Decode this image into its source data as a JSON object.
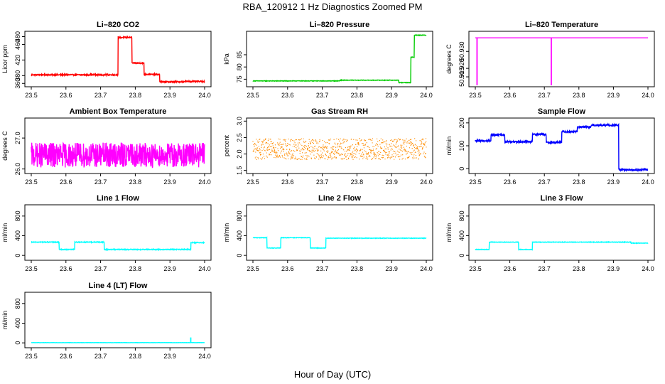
{
  "figure": {
    "title": "RBA_120912  1 Hz Diagnostics Zoomed PM",
    "xlabel": "Hour of Day (UTC)"
  },
  "chart_data": [
    {
      "id": "co2",
      "type": "line",
      "title": "Li–820 CO2",
      "ylabel": "Licor ppm",
      "color": "#ff0000",
      "xlim": [
        23.5,
        24.0
      ],
      "ylim": [
        355,
        490
      ],
      "xticks": [
        "23.5",
        "23.6",
        "23.7",
        "23.8",
        "23.9",
        "24.0"
      ],
      "xtick_values": [
        23.5,
        23.6,
        23.7,
        23.8,
        23.9,
        24.0
      ],
      "yticks": [
        "360",
        "380",
        "420",
        "460",
        "480"
      ],
      "ytick_values": [
        360,
        380,
        420,
        460,
        480
      ],
      "noise": 1.5,
      "segments": [
        [
          23.5,
          23.75,
          382
        ],
        [
          23.75,
          23.79,
          478
        ],
        [
          23.79,
          23.825,
          412
        ],
        [
          23.825,
          23.87,
          383
        ],
        [
          23.87,
          23.94,
          364
        ],
        [
          23.94,
          24.0,
          365
        ]
      ]
    },
    {
      "id": "pressure",
      "type": "line",
      "title": "Li–820 Pressure",
      "ylabel": "kPa",
      "color": "#00cc00",
      "xlim": [
        23.5,
        24.0
      ],
      "ylim": [
        72.5,
        94
      ],
      "xticks": [
        "23.5",
        "23.6",
        "23.7",
        "23.8",
        "23.9",
        "24.0"
      ],
      "xtick_values": [
        23.5,
        23.6,
        23.7,
        23.8,
        23.9,
        24.0
      ],
      "yticks": [
        "75",
        "80",
        "85"
      ],
      "ytick_values": [
        75,
        80,
        85
      ],
      "noise": 0.1,
      "segments": [
        [
          23.5,
          23.75,
          74.3
        ],
        [
          23.75,
          23.92,
          74.6
        ],
        [
          23.92,
          23.955,
          73.6
        ],
        [
          23.955,
          23.965,
          84.0
        ],
        [
          23.965,
          24.0,
          93.0
        ]
      ]
    },
    {
      "id": "licor_temp",
      "type": "line",
      "title": "Li–820 Temperature",
      "ylabel": "degrees C",
      "color": "#ff00ff",
      "xlim": [
        23.5,
        24.0
      ],
      "ylim": [
        50.91,
        50.941
      ],
      "xticks": [
        "23.5",
        "23.6",
        "23.7",
        "23.8",
        "23.9",
        "24.0"
      ],
      "xtick_values": [
        23.5,
        23.6,
        23.7,
        23.8,
        23.9,
        24.0
      ],
      "yticks": [
        "50.915",
        "50.920",
        "50.930"
      ],
      "ytick_values": [
        50.915,
        50.92,
        50.93
      ],
      "noise": 0,
      "segments": [
        [
          23.5,
          24.0,
          50.938
        ]
      ],
      "spikes": [
        [
          23.505,
          50.91
        ],
        [
          23.72,
          50.91
        ]
      ]
    },
    {
      "id": "box_temp",
      "type": "line",
      "title": "Ambient Box Temperature",
      "ylabel": "degrees C",
      "color": "#ff00ff",
      "xlim": [
        23.5,
        24.0
      ],
      "ylim": [
        25.9,
        27.6
      ],
      "xticks": [
        "23.5",
        "23.6",
        "23.7",
        "23.8",
        "23.9",
        "24.0"
      ],
      "xtick_values": [
        23.5,
        23.6,
        23.7,
        23.8,
        23.9,
        24.0
      ],
      "yticks": [
        "26.0",
        "27.0"
      ],
      "ytick_values": [
        26.0,
        27.0
      ],
      "noise": 0.4,
      "segments": [
        [
          23.5,
          24.0,
          26.45
        ]
      ]
    },
    {
      "id": "rh",
      "type": "scatter",
      "title": "Gas Stream RH",
      "ylabel": "percent",
      "color": "#ff8c00",
      "xlim": [
        23.5,
        24.0
      ],
      "ylim": [
        1.45,
        3.05
      ],
      "xticks": [
        "23.5",
        "23.6",
        "23.7",
        "23.8",
        "23.9",
        "24.0"
      ],
      "xtick_values": [
        23.5,
        23.6,
        23.7,
        23.8,
        23.9,
        24.0
      ],
      "yticks": [
        "1.5",
        "2.0",
        "2.5",
        "3.0"
      ],
      "ytick_values": [
        1.5,
        2.0,
        2.5,
        3.0
      ],
      "noise": 0.32,
      "segments": [
        [
          23.5,
          24.0,
          2.15
        ]
      ]
    },
    {
      "id": "sample_flow",
      "type": "line",
      "title": "Sample Flow",
      "ylabel": "ml/min",
      "color": "#0000ff",
      "xlim": [
        23.5,
        24.0
      ],
      "ylim": [
        -15,
        215
      ],
      "xticks": [
        "23.5",
        "23.6",
        "23.7",
        "23.8",
        "23.9",
        "24.0"
      ],
      "xtick_values": [
        23.5,
        23.6,
        23.7,
        23.8,
        23.9,
        24.0
      ],
      "yticks": [
        "0",
        "100",
        "200"
      ],
      "ytick_values": [
        0,
        100,
        200
      ],
      "noise": 4,
      "segments": [
        [
          23.5,
          23.545,
          122
        ],
        [
          23.545,
          23.585,
          148
        ],
        [
          23.585,
          23.665,
          118
        ],
        [
          23.665,
          23.705,
          150
        ],
        [
          23.705,
          23.75,
          115
        ],
        [
          23.75,
          23.795,
          162
        ],
        [
          23.795,
          23.835,
          182
        ],
        [
          23.835,
          23.915,
          190
        ],
        [
          23.915,
          24.0,
          -5
        ]
      ]
    },
    {
      "id": "line1",
      "type": "line",
      "title": "Line 1 Flow",
      "ylabel": "ml/min",
      "color": "#00ffff",
      "xlim": [
        23.5,
        24.0
      ],
      "ylim": [
        -70,
        1000
      ],
      "xticks": [
        "23.5",
        "23.6",
        "23.7",
        "23.8",
        "23.9",
        "24.0"
      ],
      "xtick_values": [
        23.5,
        23.6,
        23.7,
        23.8,
        23.9,
        24.0
      ],
      "yticks": [
        "0",
        "400",
        "800"
      ],
      "ytick_values": [
        0,
        400,
        800
      ],
      "noise": 8,
      "segments": [
        [
          23.5,
          23.58,
          270
        ],
        [
          23.58,
          23.625,
          120
        ],
        [
          23.625,
          23.71,
          270
        ],
        [
          23.71,
          23.96,
          120
        ],
        [
          23.96,
          24.0,
          260
        ]
      ]
    },
    {
      "id": "line2",
      "type": "line",
      "title": "Line 2 Flow",
      "ylabel": "ml/min",
      "color": "#00ffff",
      "xlim": [
        23.5,
        24.0
      ],
      "ylim": [
        -70,
        1000
      ],
      "xticks": [
        "23.5",
        "23.6",
        "23.7",
        "23.8",
        "23.9",
        "24.0"
      ],
      "xtick_values": [
        23.5,
        23.6,
        23.7,
        23.8,
        23.9,
        24.0
      ],
      "yticks": [
        "0",
        "400",
        "800"
      ],
      "ytick_values": [
        0,
        400,
        800
      ],
      "noise": 5,
      "segments": [
        [
          23.5,
          23.54,
          360
        ],
        [
          23.54,
          23.58,
          150
        ],
        [
          23.58,
          23.665,
          360
        ],
        [
          23.665,
          23.71,
          150
        ],
        [
          23.71,
          24.0,
          350
        ]
      ]
    },
    {
      "id": "line3",
      "type": "line",
      "title": "Line 3 Flow",
      "ylabel": "ml/min",
      "color": "#00ffff",
      "xlim": [
        23.5,
        24.0
      ],
      "ylim": [
        -70,
        1000
      ],
      "xticks": [
        "23.5",
        "23.6",
        "23.7",
        "23.8",
        "23.9",
        "24.0"
      ],
      "xtick_values": [
        23.5,
        23.6,
        23.7,
        23.8,
        23.9,
        24.0
      ],
      "yticks": [
        "0",
        "400",
        "800"
      ],
      "ytick_values": [
        0,
        400,
        800
      ],
      "noise": 5,
      "segments": [
        [
          23.5,
          23.54,
          120
        ],
        [
          23.54,
          23.625,
          270
        ],
        [
          23.625,
          23.665,
          120
        ],
        [
          23.665,
          23.95,
          270
        ],
        [
          23.95,
          24.0,
          250
        ]
      ]
    },
    {
      "id": "line4",
      "type": "line",
      "title": "Line 4 (LT) Flow",
      "ylabel": "ml/min",
      "color": "#00ffff",
      "xlim": [
        23.5,
        24.0
      ],
      "ylim": [
        -70,
        1000
      ],
      "xticks": [
        "23.5",
        "23.6",
        "23.7",
        "23.8",
        "23.9",
        "24.0"
      ],
      "xtick_values": [
        23.5,
        23.6,
        23.7,
        23.8,
        23.9,
        24.0
      ],
      "yticks": [
        "0",
        "400",
        "800"
      ],
      "ytick_values": [
        0,
        400,
        800
      ],
      "noise": 2,
      "segments": [
        [
          23.5,
          24.0,
          5
        ]
      ],
      "spikes": [
        [
          23.96,
          110
        ]
      ]
    }
  ]
}
